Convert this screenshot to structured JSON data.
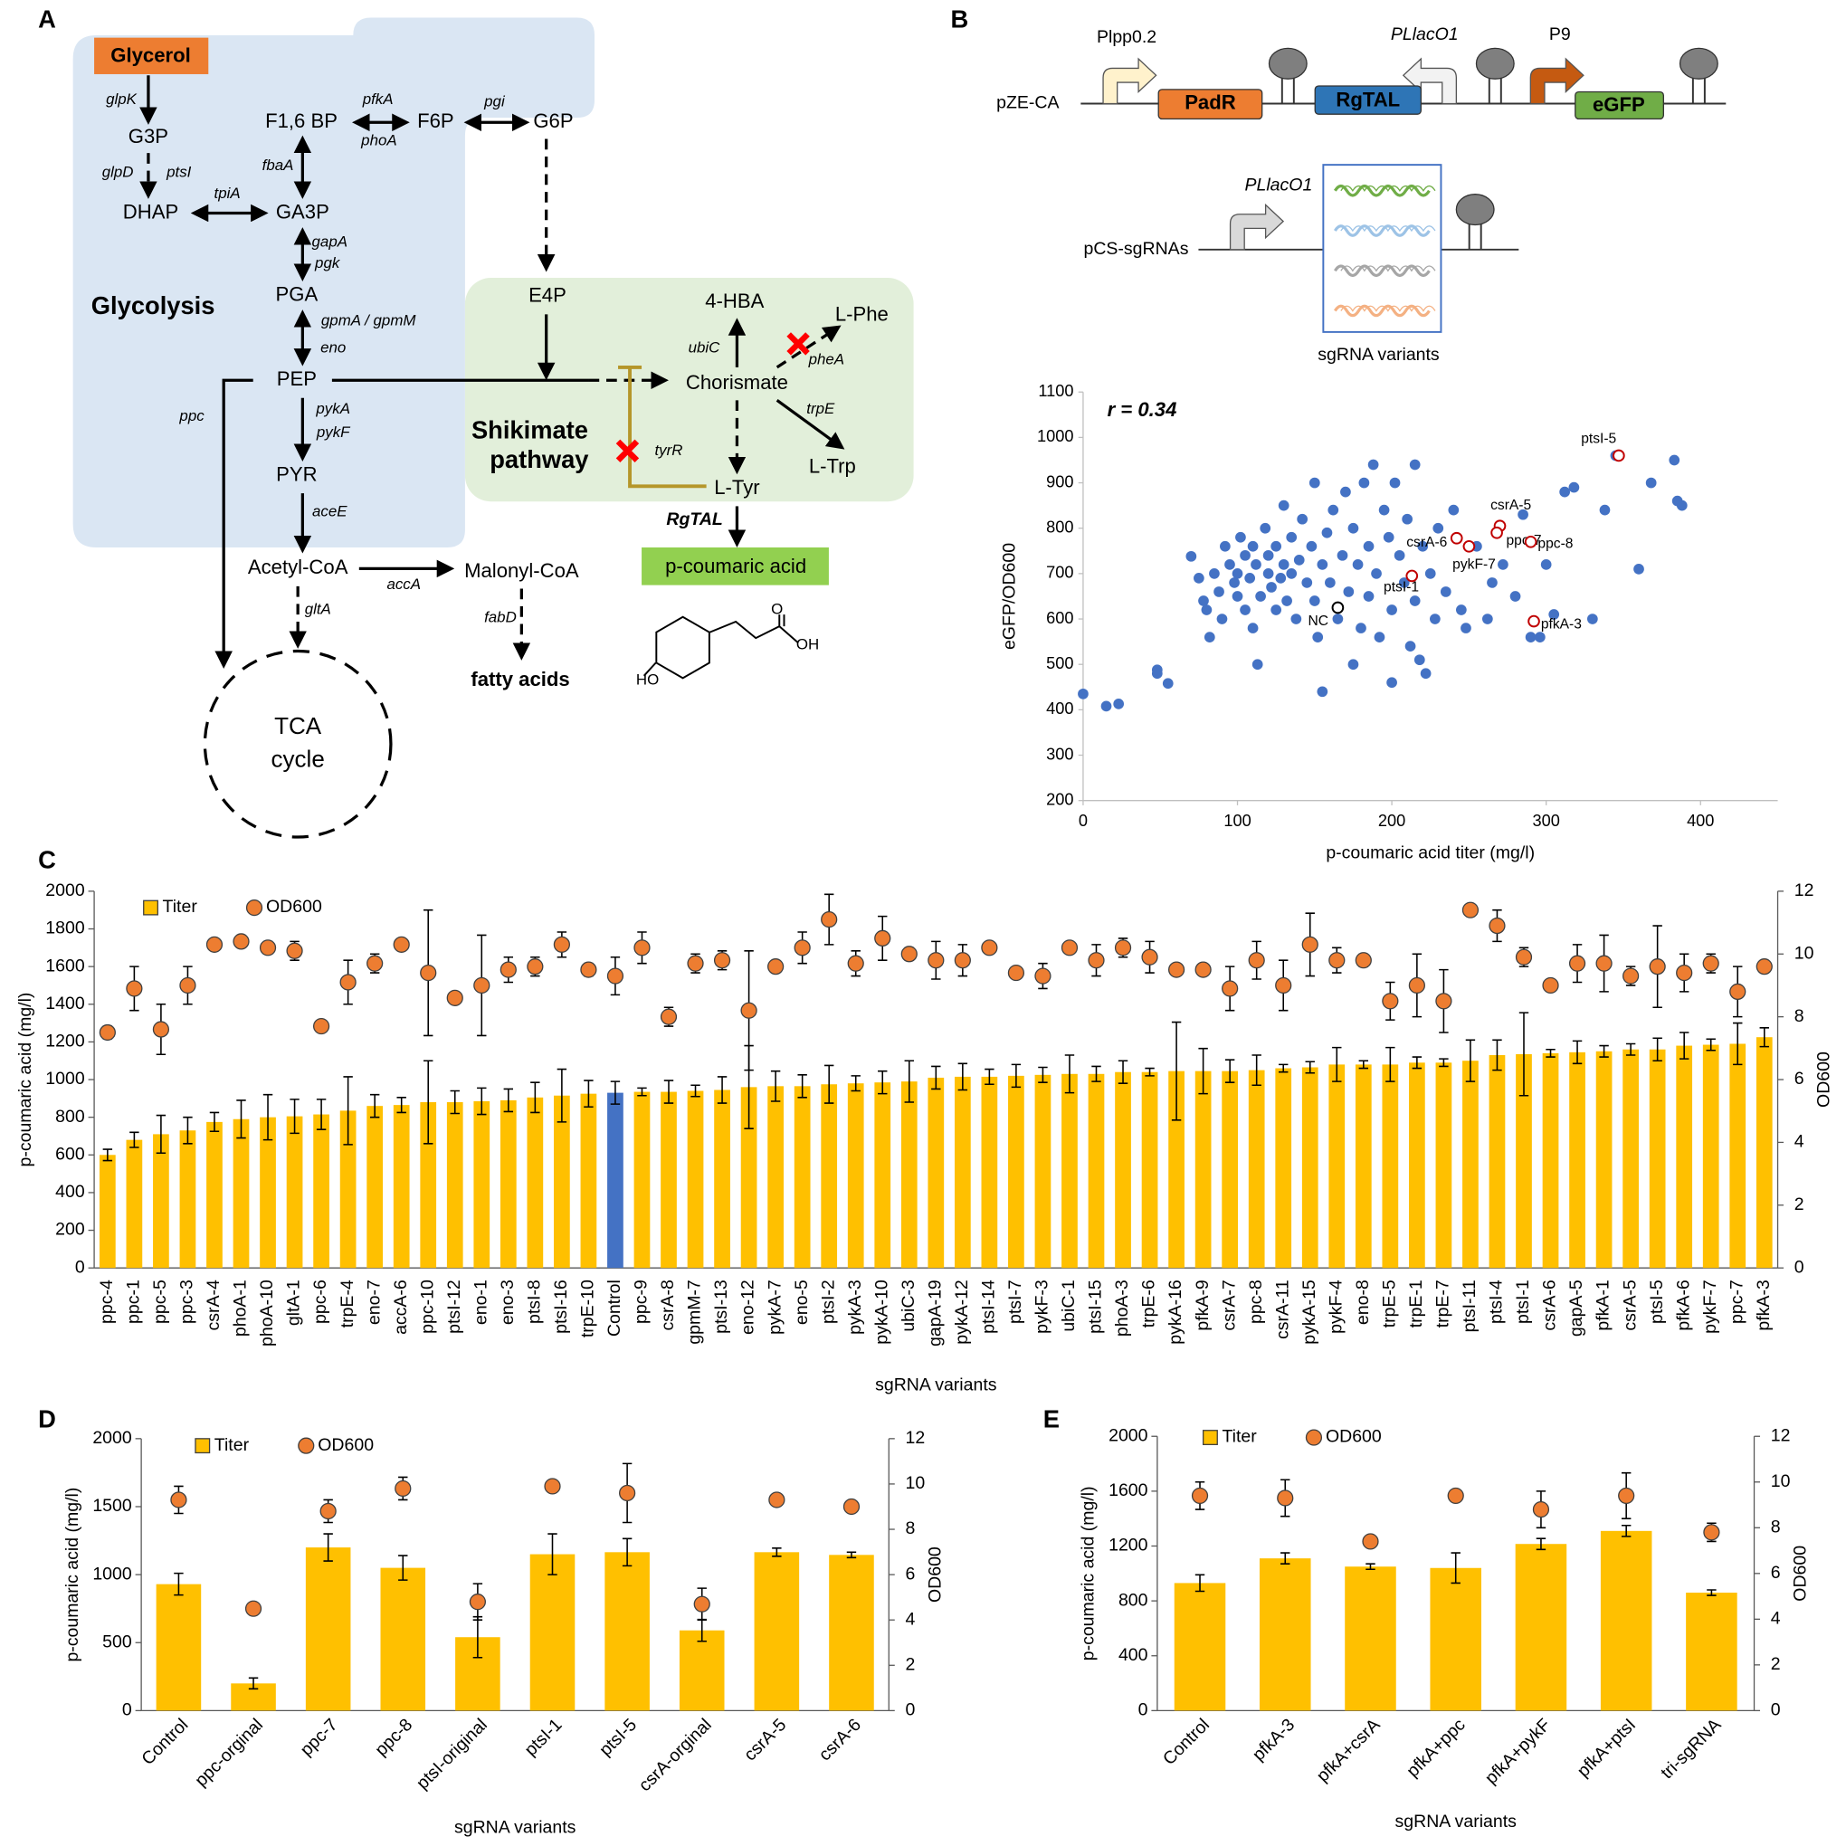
{
  "panel_labels": [
    "A",
    "B",
    "C",
    "D",
    "E"
  ],
  "pathway": {
    "metabolites": [
      "Glycerol",
      "G3P",
      "DHAP",
      "GA3P",
      "F1,6 BP",
      "F6P",
      "G6P",
      "PGA",
      "PEP",
      "PYR",
      "Acetyl-CoA",
      "Malonyl-CoA",
      "fatty acids",
      "E4P",
      "4-HBA",
      "L-Phe",
      "Chorismate",
      "L-Trp",
      "L-Tyr",
      "p-coumaric acid",
      "TCA",
      "cycle"
    ],
    "genes": [
      "glpK",
      "glpD",
      "ptsI",
      "tpiA",
      "pfkA",
      "phoA",
      "pgi",
      "fbaA",
      "gapA",
      "pgk",
      "gpmA / gpmM",
      "eno",
      "ppc",
      "pykA",
      "pykF",
      "aceE",
      "accA",
      "gltA",
      "fabD",
      "ubiC",
      "pheA",
      "trpE",
      "tyrR",
      "RgTAL"
    ],
    "regions": [
      "Glycolysis",
      "Shikimate",
      "pathway"
    ],
    "structure_labels": [
      "HO",
      "OH",
      "O"
    ]
  },
  "constructs": {
    "plasmids": [
      "pZE-CA",
      "pCS-sgRNAs"
    ],
    "promoters": [
      "Plpp0.2",
      "PLlacO1",
      "P9",
      "PLlacO1"
    ],
    "genes": [
      "PadR",
      "RgTAL",
      "eGFP"
    ],
    "caption": "sgRNA variants"
  },
  "chart_data": [
    {
      "type": "scatter",
      "annotation": "r = 0.34",
      "x_label": "p-coumaric acid titer (mg/l)",
      "y_label": "eGFP/OD600",
      "xlim": [
        0,
        450
      ],
      "xticks": [
        0,
        100,
        200,
        300,
        400
      ],
      "ylim": [
        200,
        1100
      ],
      "yticks": [
        200,
        300,
        400,
        500,
        600,
        700,
        800,
        900,
        1000,
        1100
      ],
      "series": [
        {
          "color": "#4472c4",
          "x": [
            0,
            15,
            23,
            48,
            48,
            55,
            70,
            75,
            78,
            80,
            82,
            85,
            88,
            90,
            92,
            95,
            98,
            100,
            100,
            102,
            105,
            105,
            108,
            110,
            110,
            112,
            113,
            115,
            118,
            120,
            120,
            122,
            125,
            125,
            128,
            130,
            130,
            132,
            135,
            135,
            138,
            140,
            142,
            145,
            148,
            150,
            150,
            152,
            155,
            155,
            158,
            160,
            162,
            165,
            168,
            170,
            172,
            175,
            175,
            178,
            180,
            182,
            185,
            185,
            188,
            190,
            192,
            195,
            198,
            200,
            200,
            202,
            205,
            208,
            210,
            212,
            215,
            215,
            218,
            220,
            222,
            225,
            228,
            230,
            235,
            240,
            245,
            248,
            255,
            262,
            265,
            272,
            280,
            285,
            290,
            296,
            300,
            305,
            312,
            318,
            330,
            338,
            345,
            360,
            368,
            383,
            385,
            388
          ],
          "values": [
            435,
            408,
            413,
            488,
            480,
            458,
            738,
            690,
            640,
            620,
            560,
            700,
            660,
            600,
            760,
            720,
            680,
            650,
            700,
            780,
            740,
            620,
            690,
            760,
            580,
            720,
            500,
            650,
            800,
            700,
            740,
            670,
            760,
            620,
            690,
            720,
            850,
            640,
            780,
            700,
            600,
            730,
            820,
            680,
            760,
            640,
            900,
            560,
            440,
            720,
            790,
            680,
            840,
            600,
            740,
            880,
            660,
            500,
            800,
            720,
            580,
            900,
            760,
            650,
            940,
            700,
            560,
            840,
            780,
            620,
            460,
            900,
            740,
            680,
            820,
            540,
            940,
            640,
            510,
            760,
            480,
            700,
            600,
            800,
            660,
            840,
            620,
            580,
            760,
            600,
            680,
            720,
            650,
            830,
            560,
            560,
            720,
            610,
            880,
            890,
            600,
            840,
            960,
            710,
            900,
            950,
            860,
            850
          ]
        },
        {
          "color": "#c00000",
          "x": [
            347,
            270,
            268,
            242,
            250,
            290,
            213,
            292
          ],
          "values": [
            960,
            805,
            790,
            778,
            760,
            770,
            695,
            595
          ],
          "point_labels": [
            "ptsI-5",
            "csrA-5",
            "ppc-7",
            "csrA-6",
            "pykF-7",
            "ppc-8",
            "ptsI-1",
            "pfkA-3"
          ]
        },
        {
          "color": "#000000",
          "x": [
            165
          ],
          "values": [
            625
          ],
          "point_labels": [
            "NC"
          ]
        }
      ]
    },
    {
      "type": "bar",
      "x_label": "sgRNA variants",
      "y_label": "p-coumaric acid (mg/l)",
      "y2_label": "OD600",
      "categories": [
        "ppc-4",
        "ppc-1",
        "ppc-5",
        "ppc-3",
        "csrA-4",
        "phoA-1",
        "phoA-10",
        "gltA-1",
        "ppc-6",
        "trpE-4",
        "eno-7",
        "accA-6",
        "ppc-10",
        "ptsI-12",
        "eno-1",
        "eno-3",
        "ptsI-8",
        "ptsI-16",
        "trpE-10",
        "Control",
        "ppc-9",
        "csrA-8",
        "gpmM-7",
        "ptsI-13",
        "eno-12",
        "pykA-7",
        "eno-5",
        "ptsI-2",
        "pykA-3",
        "pykA-10",
        "ubiC-3",
        "gapA-19",
        "pykA-12",
        "ptsI-14",
        "ptsI-7",
        "pykF-3",
        "ubiC-1",
        "ptsI-15",
        "phoA-3",
        "trpE-6",
        "pykA-16",
        "pfkA-9",
        "csrA-7",
        "ppc-8",
        "csrA-11",
        "pykA-15",
        "pykF-4",
        "eno-8",
        "trpE-5",
        "trpE-1",
        "trpE-7",
        "ptsI-11",
        "ptsI-4",
        "ptsI-1",
        "csrA-6",
        "gapA-5",
        "pfkA-1",
        "csrA-5",
        "ptsI-5",
        "pfkA-6",
        "pykF-7",
        "ppc-7",
        "pfkA-3"
      ],
      "series": [
        {
          "name": "Titer",
          "color": "#ffc000",
          "values": [
            600,
            680,
            710,
            730,
            775,
            790,
            800,
            805,
            815,
            835,
            860,
            865,
            880,
            880,
            885,
            890,
            905,
            915,
            925,
            930,
            935,
            935,
            940,
            945,
            960,
            965,
            965,
            975,
            980,
            985,
            990,
            1010,
            1015,
            1015,
            1020,
            1025,
            1030,
            1030,
            1040,
            1040,
            1045,
            1045,
            1045,
            1050,
            1060,
            1065,
            1080,
            1080,
            1080,
            1090,
            1090,
            1100,
            1130,
            1135,
            1140,
            1145,
            1150,
            1160,
            1160,
            1180,
            1185,
            1190,
            1225
          ],
          "errors": [
            30,
            40,
            100,
            70,
            50,
            100,
            120,
            90,
            80,
            180,
            60,
            40,
            220,
            60,
            70,
            60,
            80,
            140,
            70,
            60,
            20,
            60,
            30,
            70,
            220,
            80,
            60,
            100,
            40,
            60,
            110,
            60,
            70,
            40,
            60,
            40,
            100,
            40,
            60,
            20,
            260,
            120,
            60,
            80,
            20,
            30,
            90,
            20,
            90,
            30,
            20,
            110,
            80,
            220,
            20,
            60,
            30,
            30,
            60,
            70,
            30,
            110,
            50
          ]
        },
        {
          "name": "OD600",
          "color": "#ed7d31",
          "axis": "y2",
          "values": [
            7.5,
            8.9,
            7.6,
            9.0,
            10.3,
            10.4,
            10.2,
            10.1,
            7.7,
            9.1,
            9.7,
            10.3,
            9.4,
            8.6,
            9.0,
            9.5,
            9.6,
            10.3,
            9.5,
            9.3,
            10.2,
            8.0,
            9.7,
            9.8,
            8.2,
            9.6,
            10.2,
            11.1,
            9.7,
            10.5,
            10.0,
            9.8,
            9.8,
            10.2,
            9.4,
            9.3,
            10.2,
            9.8,
            10.2,
            9.9,
            9.5,
            9.5,
            8.9,
            9.8,
            9.0,
            10.3,
            9.8,
            9.8,
            8.5,
            9.0,
            8.5,
            11.4,
            10.9,
            9.9,
            9.0,
            9.7,
            9.7,
            9.3,
            9.6,
            9.4,
            9.7,
            8.8,
            9.6
          ],
          "errors": [
            0.2,
            0.7,
            0.8,
            0.6,
            0,
            0.1,
            0.2,
            0.3,
            0,
            0.7,
            0.3,
            0,
            2.0,
            0.1,
            1.6,
            0.4,
            0.3,
            0.4,
            0.2,
            0.6,
            0.5,
            0.3,
            0.3,
            0.3,
            1.9,
            0.1,
            0.5,
            0.8,
            0.4,
            0.7,
            0.2,
            0.6,
            0.5,
            0.1,
            0.1,
            0.4,
            0.1,
            0.5,
            0.3,
            0.5,
            0.1,
            0.1,
            0.7,
            0.6,
            0.8,
            1.0,
            0.4,
            0.2,
            0.6,
            1.0,
            1.0,
            0.1,
            0.5,
            0.3,
            0.1,
            0.6,
            0.9,
            0.3,
            1.3,
            0.6,
            0.3,
            0.8,
            0.1
          ]
        }
      ],
      "highlight": {
        "category": "Control",
        "color": "#4472c4"
      },
      "ylim": [
        0,
        2000
      ],
      "yticks": [
        0,
        200,
        400,
        600,
        800,
        1000,
        1200,
        1400,
        1600,
        1800,
        2000
      ],
      "y2lim": [
        0,
        12
      ],
      "y2ticks": [
        0,
        2,
        4,
        6,
        8,
        10,
        12
      ]
    },
    {
      "type": "bar",
      "x_label": "sgRNA variants",
      "y_label": "p-coumaric acid (mg/l)",
      "y2_label": "OD600",
      "categories": [
        "Control",
        "ppc-orginal",
        "ppc-7",
        "ppc-8",
        "ptsI-original",
        "ptsI-1",
        "ptsI-5",
        "csrA-orginal",
        "csrA-5",
        "csrA-6"
      ],
      "series": [
        {
          "name": "Titer",
          "color": "#ffc000",
          "values": [
            930,
            200,
            1200,
            1050,
            540,
            1150,
            1165,
            590,
            1165,
            1145
          ],
          "errors": [
            80,
            40,
            100,
            90,
            150,
            150,
            100,
            80,
            30,
            20
          ]
        },
        {
          "name": "OD600",
          "color": "#ed7d31",
          "axis": "y2",
          "values": [
            9.3,
            4.5,
            8.8,
            9.8,
            4.8,
            9.9,
            9.6,
            4.7,
            9.3,
            9.0
          ],
          "errors": [
            0.6,
            0,
            0.5,
            0.5,
            0.8,
            0.2,
            1.3,
            0.7,
            0,
            0
          ]
        }
      ],
      "ylim": [
        0,
        2000
      ],
      "yticks": [
        0,
        500,
        1000,
        1500,
        2000
      ],
      "y2lim": [
        0,
        12
      ],
      "y2ticks": [
        0,
        2,
        4,
        6,
        8,
        10,
        12
      ]
    },
    {
      "type": "bar",
      "x_label": "sgRNA variants",
      "y_label": "p-coumaric acid (mg/l)",
      "y2_label": "OD600",
      "categories": [
        "Control",
        "pfkA-3",
        "pfkA+csrA",
        "pfkA+ppc",
        "pfkA+pykF",
        "pfkA+ptsI",
        "tri-sgRNA"
      ],
      "series": [
        {
          "name": "Titer",
          "color": "#ffc000",
          "values": [
            930,
            1110,
            1050,
            1040,
            1215,
            1310,
            860
          ],
          "errors": [
            60,
            40,
            20,
            110,
            40,
            40,
            20
          ]
        },
        {
          "name": "OD600",
          "color": "#ed7d31",
          "axis": "y2",
          "values": [
            9.4,
            9.3,
            7.4,
            9.4,
            8.8,
            9.4,
            7.8
          ],
          "errors": [
            0.6,
            0.8,
            0,
            0,
            0.8,
            1.0,
            0.4
          ]
        }
      ],
      "ylim": [
        0,
        2000
      ],
      "yticks": [
        0,
        400,
        800,
        1200,
        1600,
        2000
      ],
      "y2lim": [
        0,
        12
      ],
      "y2ticks": [
        0,
        2,
        4,
        6,
        8,
        10,
        12
      ]
    }
  ]
}
